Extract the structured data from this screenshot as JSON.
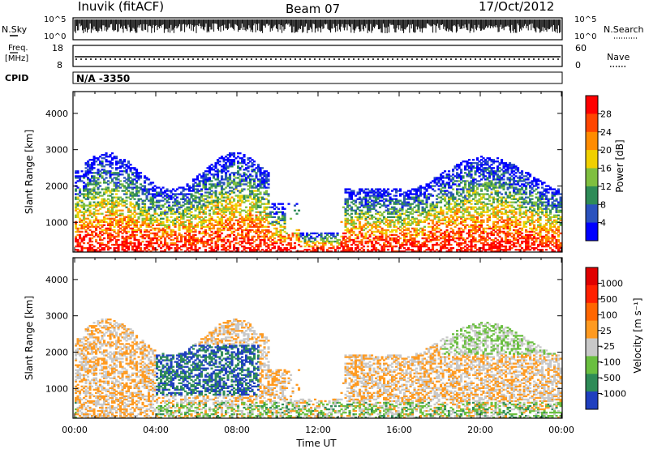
{
  "header": {
    "station": "Inuvik (fitACF)",
    "beam": "Beam 07",
    "date": "17/Oct/2012"
  },
  "strips": {
    "nsky_label": "N.Sky",
    "nsky_ticks": [
      "10^5",
      "10^0"
    ],
    "nsearch_label": "N.Search",
    "freq_label_line1": "Freq.",
    "freq_label_line2": "[MHz]",
    "freq_ticks": [
      "18",
      "8"
    ],
    "nave_ticks": [
      "60",
      "0"
    ],
    "nave_label": "Nave",
    "cpid_label": "CPID",
    "cpid_value": "N/A -3350"
  },
  "chart_data": [
    {
      "type": "heatmap",
      "name": "power",
      "ylabel": "Slant Range [km]",
      "ylim": [
        180,
        4600
      ],
      "yticks": [
        "1000",
        "2000",
        "3000",
        "4000"
      ],
      "xlabel": "",
      "colorbar_label": "Power [dB]",
      "colorbar_ticks": [
        "4",
        "8",
        "12",
        "16",
        "20",
        "24",
        "28"
      ],
      "colorbar_colors": [
        "#0000ff",
        "#2a52be",
        "#2e8b57",
        "#7fbf3f",
        "#f0d000",
        "#ff8c00",
        "#ff4500",
        "#ff0000"
      ]
    },
    {
      "type": "heatmap",
      "name": "velocity",
      "ylabel": "Slant Range [km]",
      "ylim": [
        180,
        4600
      ],
      "yticks": [
        "1000",
        "2000",
        "3000",
        "4000"
      ],
      "xlabel": "Time UT",
      "xticks": [
        "00:00",
        "04:00",
        "08:00",
        "12:00",
        "16:00",
        "20:00",
        "00:00"
      ],
      "colorbar_label": "Velocity [m s⁻¹]",
      "colorbar_ticks": [
        "1000",
        "500",
        "100",
        "25",
        "-25",
        "-100",
        "-500",
        "-1000"
      ],
      "colorbar_colors": [
        "#1f3fbf",
        "#2e8b57",
        "#6abf40",
        "#c8c8c8",
        "#ff9a20",
        "#ff6600",
        "#ff2000",
        "#e00000"
      ]
    }
  ]
}
